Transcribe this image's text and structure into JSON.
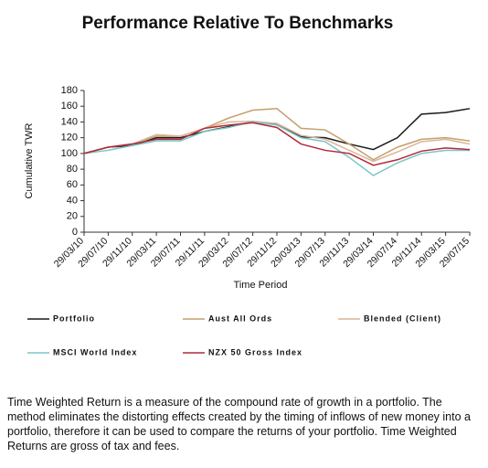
{
  "chart_data": {
    "type": "line",
    "title": "Performance Relative To Benchmarks",
    "x_label": "Time Period",
    "y_label": "Cumulative TWR",
    "categories": [
      "29/03/10",
      "29/07/10",
      "29/11/10",
      "29/03/11",
      "29/07/11",
      "29/11/11",
      "29/03/12",
      "29/07/12",
      "29/11/12",
      "29/03/13",
      "29/07/13",
      "29/11/13",
      "29/03/14",
      "29/07/14",
      "29/11/14",
      "29/03/15",
      "29/07/15"
    ],
    "ylim": [
      0,
      180
    ],
    "yticks": [
      0,
      20,
      40,
      60,
      80,
      100,
      120,
      140,
      160,
      180
    ],
    "grid": false,
    "series": [
      {
        "name": "Portfolio",
        "color": "#1a1a1a",
        "values": [
          100,
          108,
          110,
          120,
          120,
          128,
          134,
          140,
          137,
          121,
          120,
          112,
          105,
          120,
          150,
          152,
          157
        ]
      },
      {
        "name": "Aust All Ords",
        "color": "#c4a06a",
        "values": [
          100,
          108,
          112,
          122,
          122,
          132,
          145,
          155,
          157,
          132,
          130,
          112,
          92,
          108,
          118,
          120,
          116
        ]
      },
      {
        "name": "Blended (Client)",
        "color": "#dcb496",
        "values": [
          100,
          108,
          112,
          124,
          122,
          132,
          140,
          141,
          138,
          123,
          118,
          104,
          90,
          102,
          115,
          118,
          112
        ]
      },
      {
        "name": "MSCI World Index",
        "color": "#7cc6c8",
        "values": [
          100,
          104,
          110,
          116,
          116,
          128,
          133,
          140,
          136,
          120,
          115,
          95,
          72,
          88,
          100,
          104,
          104
        ]
      },
      {
        "name": "NZX 50 Gross Index",
        "color": "#b02a3a",
        "values": [
          100,
          108,
          112,
          118,
          118,
          132,
          136,
          139,
          133,
          112,
          104,
          100,
          85,
          92,
          103,
          107,
          105
        ]
      }
    ]
  },
  "note": "Time Weighted Return is a measure of the compound rate of growth in a portfolio. The method eliminates the distorting effects created by the timing of inflows of new money into a portfolio, therefore it can be used to compare the returns of your portfolio. Time Weighted Returns are gross of tax and fees."
}
